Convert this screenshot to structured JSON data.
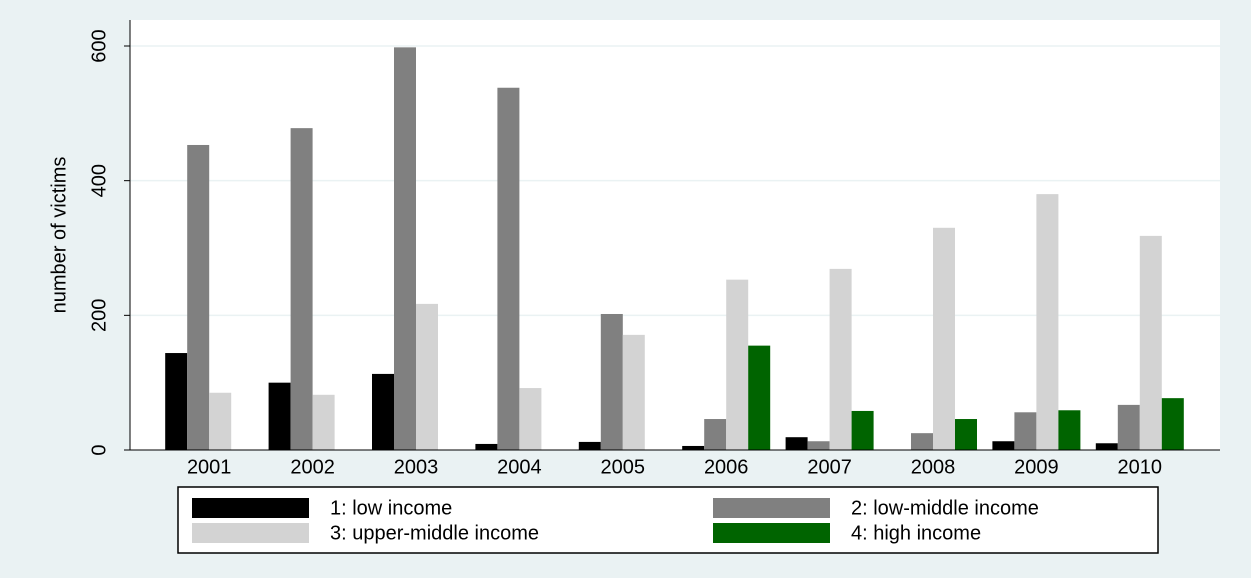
{
  "chart_data": {
    "type": "bar",
    "y_label": "number of victims",
    "categories": [
      "2001",
      "2002",
      "2003",
      "2004",
      "2005",
      "2006",
      "2007",
      "2008",
      "2009",
      "2010"
    ],
    "series": [
      {
        "name": "1: low income",
        "color": "#000000",
        "values": [
          144,
          100,
          113,
          9,
          12,
          6,
          19,
          0,
          13,
          10
        ]
      },
      {
        "name": "2: low-middle income",
        "color": "#808080",
        "values": [
          453,
          478,
          598,
          538,
          202,
          46,
          13,
          25,
          56,
          67
        ]
      },
      {
        "name": "3: upper-middle income",
        "color": "#d3d3d3",
        "values": [
          85,
          82,
          217,
          92,
          171,
          253,
          269,
          330,
          380,
          318
        ]
      },
      {
        "name": "4: high income",
        "color": "#006400",
        "values": [
          0,
          0,
          0,
          0,
          0,
          155,
          58,
          46,
          59,
          77
        ]
      }
    ],
    "ylim": [
      0,
      600
    ],
    "yticks": [
      0,
      200,
      400,
      600
    ],
    "grid": true,
    "legend": "bottom"
  }
}
